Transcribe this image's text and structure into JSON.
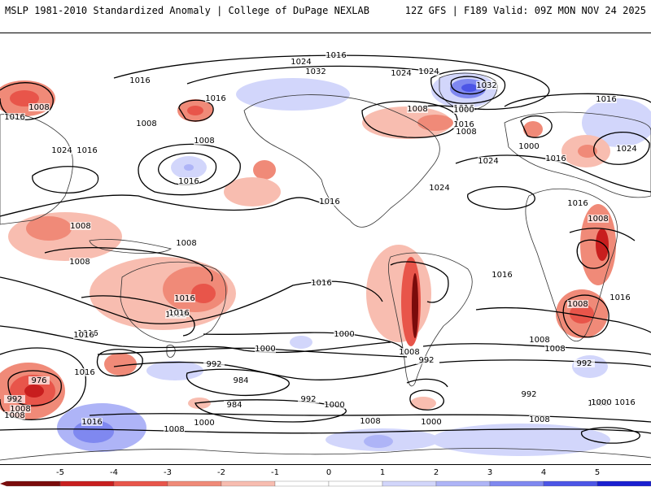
{
  "header": {
    "left": "MSLP 1981-2010 Standardized Anomaly | College of DuPage NEXLAB",
    "right": "12Z GFS | F189 Valid: 09Z MON NOV 24 2025"
  },
  "colors": {
    "neg5": "#7a0b0b",
    "neg4": "#c81e1e",
    "neg3": "#e8554a",
    "neg2": "#f08a78",
    "neg1": "#f8bdb0",
    "zero": "#ffffff",
    "pos1": "#d2d6fb",
    "pos2": "#aeb4f7",
    "pos3": "#7f88f0",
    "pos4": "#4c55e6",
    "pos5": "#1a1fd0",
    "land_outline": "#333333",
    "isobar": "#000000"
  },
  "colorbar": {
    "labels": [
      "-5",
      "-4",
      "-3",
      "-2",
      "-1",
      "0",
      "1",
      "2",
      "3",
      "4",
      "5"
    ]
  },
  "isobar_labels": [
    "1016",
    "1024",
    "1032",
    "1024",
    "1016",
    "1016",
    "1008",
    "1016",
    "1008",
    "1024",
    "1016",
    "1008",
    "1016",
    "1024",
    "1032",
    "1016",
    "1008",
    "1000",
    "1016",
    "1008",
    "1024",
    "1016",
    "1000",
    "1024",
    "1016",
    "1016",
    "1024",
    "1008",
    "1016",
    "1008",
    "1008",
    "1008",
    "1016",
    "1016",
    "1016",
    "1016",
    "1008",
    "1016",
    "1016",
    "1016",
    "1000",
    "1008",
    "1016",
    "1000",
    "1008",
    "992",
    "976",
    "992",
    "1008",
    "1008",
    "992",
    "984",
    "992",
    "1008",
    "1000",
    "984",
    "992",
    "1000",
    "1008",
    "1000",
    "1008",
    "1000",
    "1000",
    "1016",
    "992",
    "1016",
    "1008",
    "1016"
  ]
}
